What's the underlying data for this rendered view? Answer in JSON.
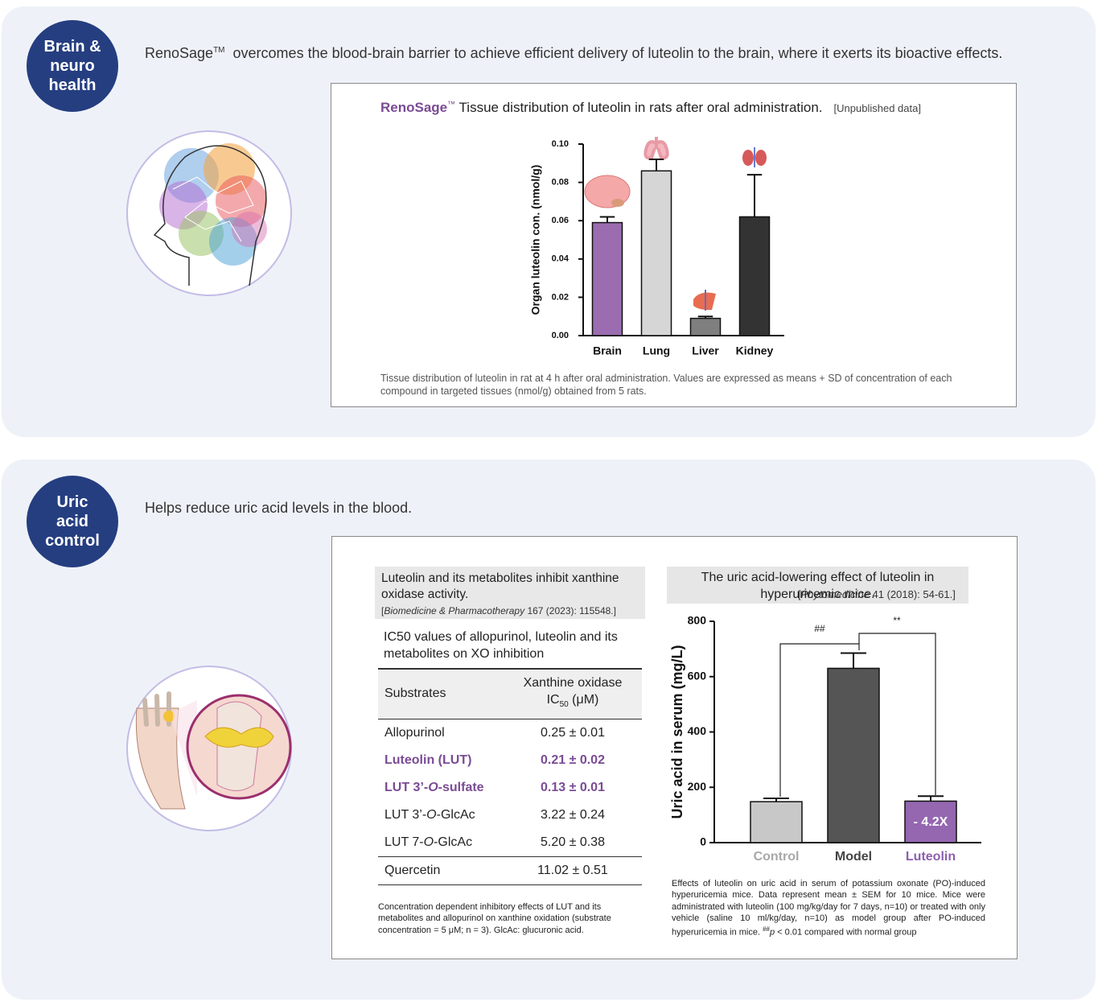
{
  "sections": [
    {
      "badge": [
        "Brain &",
        "neuro",
        "health"
      ],
      "intro": [
        "RenoSage",
        "TM",
        "  overcomes the blood-brain barrier to achieve efficient delivery of luteolin to the brain, where it exerts its bioactive effects."
      ]
    },
    {
      "badge": [
        "Uric",
        "acid",
        "control"
      ],
      "intro": [
        "Helps reduce uric acid levels in the blood."
      ]
    }
  ],
  "table": {
    "title": "Luteolin and its metabolites inhibit xanthine oxidase activity.",
    "citation": [
      "[",
      "Biomedicine & Pharmacotherapy",
      " 167 (2023): 115548.]"
    ],
    "subtitle": "IC50 values of allopurinol, luteolin and its metabolites on XO inhibition",
    "header": {
      "substrate": "Substrates",
      "ic50": [
        "Xanthine oxidase",
        "IC",
        "50",
        " (μM)"
      ]
    },
    "rows": [
      {
        "substrate": [
          "Allopurinol"
        ],
        "ic50": "0.25 ± 0.01",
        "highlight": false
      },
      {
        "substrate": [
          "Luteolin (LUT)"
        ],
        "ic50": "0.21 ± 0.02",
        "highlight": true
      },
      {
        "substrate": [
          "LUT 3’-",
          "O",
          "-sulfate"
        ],
        "ic50": "0.13 ± 0.01",
        "highlight": true
      },
      {
        "substrate": [
          "LUT 3’-",
          "O",
          "-GlcAc"
        ],
        "ic50": "3.22 ± 0.24",
        "highlight": false
      },
      {
        "substrate": [
          "LUT 7-",
          "O",
          "-GlcAc"
        ],
        "ic50": "5.20 ± 0.38",
        "highlight": false
      },
      {
        "substrate": [
          "Quercetin"
        ],
        "ic50": "11.02 ± 0.51",
        "highlight": false
      }
    ],
    "caption": "Concentration dependent inhibitory effects of LUT and its metabolites and allopurinol on xanthine oxidation (substrate concentration = 5 μM; n = 3). GlcAc: glucuronic acid."
  },
  "chart_data": [
    {
      "type": "bar",
      "title": [
        "RenoSage",
        "™",
        " Tissue distribution of luteolin in rats after oral administration."
      ],
      "note": "[Unpublished data]",
      "ylabel": "Organ luteolin con. (nmol/g)",
      "categories": [
        "Brain",
        "Lung",
        "Liver",
        "Kidney"
      ],
      "values": [
        0.059,
        0.086,
        0.009,
        0.062
      ],
      "errors": [
        0.003,
        0.006,
        0.001,
        0.022
      ],
      "colors": [
        "#9b6cb0",
        "#d6d6d6",
        "#7f7f7f",
        "#333333"
      ],
      "ylim": [
        0,
        0.1
      ],
      "yticks": [
        {
          "value": 0,
          "label": "0.00"
        },
        {
          "value": 0.02,
          "label": "0.02"
        },
        {
          "value": 0.04,
          "label": "0.04"
        },
        {
          "value": 0.06,
          "label": "0.06"
        },
        {
          "value": 0.08,
          "label": "0.08"
        },
        {
          "value": 0.1,
          "label": "0.10"
        }
      ],
      "caption": "Tissue distribution of luteolin in rat at 4 h after oral administration. Values are expressed as means + SD of concentration of each compound in targeted tissues (nmol/g) obtained from 5 rats."
    },
    {
      "type": "bar",
      "title": "The uric acid-lowering effect of luteolin in hyperuricemic mice.",
      "citation": [
        "[",
        "Phytomedicine",
        " 41 (2018): 54-61.]"
      ],
      "ylabel": "Uric acid in serum (mg/L)",
      "categories": [
        "Control",
        "Model",
        "Luteolin"
      ],
      "values": [
        148,
        630,
        150
      ],
      "errors": [
        12,
        55,
        18
      ],
      "colors": [
        "#c8c8c8",
        "#555555",
        "#9467b0"
      ],
      "label_colors": [
        "#a8a8a8",
        "#444444",
        "#8c5fae"
      ],
      "ylim": [
        0,
        800
      ],
      "yticks": [
        0,
        200,
        400,
        600,
        800
      ],
      "annotations": [
        "##",
        "**",
        "- 4.2X"
      ],
      "caption": [
        "Effects of luteolin on uric acid in serum of potassium oxonate (PO)-induced hyperuricemia mice. Data represent mean ± SEM for 10 mice. Mice were administrated with luteolin (100 mg/kg/day for 7 days, n=10) or treated with only vehicle (saline 10 ml/kg/day, n=10) as model group after PO-induced hyperuricemia in mice. ",
        "##",
        "p",
        " < 0.01 compared with normal group"
      ]
    }
  ]
}
